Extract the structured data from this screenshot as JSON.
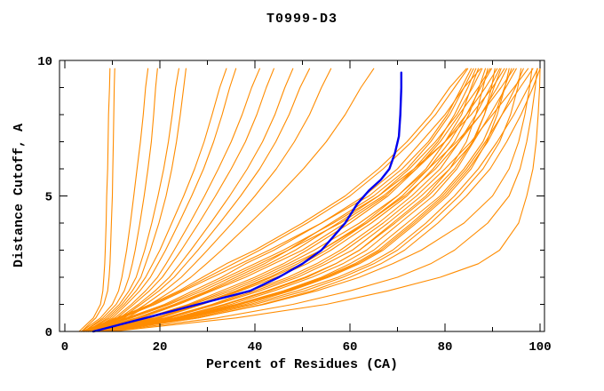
{
  "title": "T0999-D3",
  "colors": {
    "model_orange": "#FF8C00",
    "highlight_blue": "#0000EE",
    "axis": "#000000",
    "background": "#FFFFFF"
  },
  "axes": {
    "x": {
      "label": "Percent of Residues (CA)",
      "major_ticks": [
        0,
        20,
        40,
        60,
        80,
        100
      ],
      "minor_ticks": [
        10,
        30,
        50,
        70,
        90
      ],
      "range_shown": [
        -1,
        101
      ]
    },
    "y": {
      "label": "Distance Cutoff, A",
      "major_ticks": [
        0,
        5,
        10
      ],
      "minor_ticks": [
        1,
        2,
        3,
        4,
        6,
        7,
        8,
        9
      ],
      "range_shown": [
        0,
        10
      ]
    }
  },
  "chart_data": {
    "type": "line",
    "title": "T0999-D3",
    "xlabel": "Percent of Residues (CA)",
    "ylabel": "Distance Cutoff, A",
    "xlim": [
      -1,
      101
    ],
    "ylim": [
      0,
      10
    ],
    "grid": false,
    "legend": "none",
    "cutoffs": [
      0,
      0.5,
      1,
      1.5,
      2,
      2.5,
      3,
      4,
      5,
      6,
      7,
      8,
      9,
      9.7
    ],
    "orange_series_percents": [
      [
        3,
        6,
        7.5,
        8,
        8.2,
        8.4,
        8.5,
        8.7,
        8.8,
        9,
        9.1,
        9.2,
        9.4,
        9.5
      ],
      [
        3.5,
        6.5,
        8.2,
        9,
        9.3,
        9.5,
        9.6,
        9.8,
        10,
        10.1,
        10.2,
        10.3,
        10.4,
        10.5
      ],
      [
        3.5,
        7.5,
        10,
        11.3,
        12,
        12.5,
        13,
        13.8,
        14.5,
        15.2,
        15.9,
        16.5,
        17,
        17.5
      ],
      [
        4,
        8,
        10.8,
        12.5,
        13.5,
        14.2,
        14.8,
        15.8,
        16.7,
        17.5,
        18.2,
        18.7,
        19.1,
        19.5
      ],
      [
        4,
        8.5,
        11.5,
        13.5,
        15,
        15.9,
        16.8,
        18.3,
        19.6,
        20.8,
        21.8,
        22.6,
        23.3,
        24
      ],
      [
        4.5,
        9,
        12,
        14.2,
        16,
        17,
        18,
        19.8,
        21.3,
        22.5,
        23.5,
        24.3,
        25,
        25.5
      ],
      [
        4.5,
        9.5,
        12.5,
        15,
        17,
        18.5,
        20,
        22.5,
        25,
        27.3,
        29.3,
        31,
        32.6,
        34
      ],
      [
        5,
        10,
        13,
        15.8,
        18,
        19.6,
        21.2,
        24,
        26.7,
        29.2,
        31.3,
        33.1,
        34.7,
        36
      ],
      [
        5,
        10.5,
        14,
        17,
        19.5,
        21.3,
        23,
        26.3,
        29.4,
        32.3,
        35,
        37.3,
        39.3,
        41
      ],
      [
        5,
        11,
        14.5,
        17.8,
        20.5,
        22.5,
        24.5,
        28.2,
        31.7,
        35,
        38,
        40.4,
        42.4,
        44
      ],
      [
        5.5,
        11.5,
        15.5,
        19,
        22,
        24.3,
        26.5,
        30.7,
        34.7,
        38.4,
        41.6,
        44.2,
        46.3,
        48
      ],
      [
        5.5,
        12,
        16,
        19.8,
        23,
        25.5,
        28,
        32.6,
        37,
        41,
        44.4,
        47.2,
        49.5,
        51.5
      ],
      [
        6,
        12.5,
        17,
        21,
        24.5,
        27.3,
        30,
        35.2,
        40,
        44.5,
        48.3,
        51.5,
        54,
        56
      ],
      [
        6,
        13,
        18,
        22.5,
        26.5,
        29.8,
        33,
        39,
        44.8,
        50.2,
        55,
        59,
        62.3,
        65
      ],
      [
        3.5,
        11,
        18,
        24,
        29,
        34,
        40,
        50,
        59,
        66,
        72,
        77,
        81,
        84.5
      ],
      [
        4,
        13,
        21,
        27,
        33,
        38,
        44,
        54,
        63,
        70,
        75,
        80,
        84,
        87.5
      ],
      [
        4.5,
        15,
        23,
        30,
        36,
        42,
        47,
        56,
        65,
        72,
        77,
        81,
        84,
        86
      ],
      [
        5,
        17,
        26,
        33,
        40,
        46,
        51,
        60,
        68,
        74,
        79,
        83,
        87,
        89.5
      ],
      [
        5.5,
        19,
        28,
        36,
        43,
        49,
        54,
        63,
        70,
        76,
        80,
        83.5,
        85.5,
        87
      ],
      [
        6,
        21,
        31,
        39,
        47,
        53,
        58,
        66,
        73,
        79,
        83,
        86.5,
        89.5,
        91.5
      ],
      [
        6.5,
        23,
        34,
        43,
        51,
        57,
        62,
        69,
        76,
        81,
        84.5,
        86.5,
        88,
        89
      ],
      [
        7,
        24,
        36,
        46,
        54,
        60,
        65,
        72,
        79,
        84,
        88,
        90.5,
        92.5,
        94
      ],
      [
        4,
        12,
        19,
        25,
        31,
        37,
        43,
        54,
        64,
        71,
        76.5,
        80.5,
        83.5,
        85.5
      ],
      [
        4.5,
        14,
        22,
        29,
        35,
        41,
        47,
        58,
        67,
        74,
        80,
        84.5,
        88.5,
        91
      ],
      [
        5,
        16,
        24,
        31,
        38,
        44,
        50,
        59,
        67.5,
        73.5,
        78.5,
        82,
        84.8,
        86.5
      ],
      [
        5.5,
        18,
        27,
        35,
        42,
        48,
        54,
        63.5,
        71.5,
        78,
        83,
        87.5,
        91,
        93
      ],
      [
        6,
        20,
        29,
        37,
        44.5,
        51,
        56,
        64.5,
        72,
        77.5,
        82,
        85,
        87.2,
        88.5
      ],
      [
        6.5,
        22,
        32,
        41,
        49,
        55,
        60.5,
        68,
        75,
        81,
        86,
        89.5,
        92.8,
        95
      ],
      [
        7,
        23.5,
        35,
        44,
        52,
        58.5,
        63.5,
        70.5,
        77.5,
        82.5,
        86,
        88.3,
        89.8,
        90.5
      ],
      [
        7.5,
        25,
        37,
        47,
        55,
        61.5,
        66.5,
        73.5,
        80,
        85,
        89,
        92,
        94.8,
        96.5
      ],
      [
        3.5,
        11.5,
        18.5,
        24.5,
        30,
        35.5,
        41,
        51,
        60,
        67,
        73,
        78,
        82,
        84.8
      ],
      [
        4,
        13.5,
        21.5,
        28,
        34,
        40,
        46,
        56.5,
        66,
        73.5,
        80,
        85.5,
        90,
        92.5
      ],
      [
        4.5,
        15.5,
        23.5,
        30.5,
        37,
        43,
        48.5,
        57.5,
        66,
        72.5,
        78,
        82.5,
        85.8,
        87.8
      ],
      [
        5,
        17.5,
        26.5,
        34,
        41,
        47,
        52.5,
        62,
        70,
        76.5,
        82.5,
        87.5,
        91.8,
        94.5
      ],
      [
        5.5,
        19.5,
        28.5,
        36.5,
        43.5,
        50,
        55,
        63.5,
        71,
        76.5,
        81,
        84.5,
        87.5,
        89.8
      ],
      [
        6,
        21.5,
        31.5,
        40,
        48,
        54,
        59,
        67,
        74,
        80,
        85.5,
        90,
        94.5,
        97.5
      ],
      [
        6.5,
        23,
        33.5,
        42.5,
        50.5,
        57,
        62,
        69.5,
        76.5,
        82,
        85.8,
        88.3,
        90.3,
        91.8
      ],
      [
        7,
        24.5,
        36.5,
        46.5,
        54.5,
        61,
        66,
        73,
        79.5,
        84.5,
        88.5,
        92,
        95.8,
        98.5
      ],
      [
        7.5,
        25.5,
        38,
        47.5,
        55.5,
        62,
        67,
        74,
        80.5,
        85.5,
        88.8,
        91,
        92.6,
        93.5
      ],
      [
        8,
        26,
        39,
        49,
        57.5,
        64,
        69,
        76,
        82,
        87,
        91,
        94.5,
        97.5,
        99.5
      ],
      [
        8.5,
        27,
        40,
        50.5,
        58.5,
        65,
        70,
        77,
        83,
        88,
        91.5,
        93.8,
        95.3,
        96
      ],
      [
        9,
        28,
        41.5,
        52,
        60,
        66.5,
        71.5,
        78.5,
        84.5,
        89.5,
        93,
        96,
        98.5,
        100
      ],
      [
        8,
        28,
        42,
        53,
        62,
        69,
        75,
        84,
        90,
        93.5,
        95.5,
        96.8,
        97.8,
        98.3
      ],
      [
        9,
        32,
        48,
        60,
        70,
        77,
        82,
        89,
        93.5,
        95.8,
        97.2,
        98.2,
        99,
        99.4
      ],
      [
        10,
        36,
        55,
        68,
        79,
        87,
        91.5,
        95.5,
        97.2,
        98.5,
        99.2,
        99.6,
        99.9,
        100
      ]
    ],
    "blue_series_points": [
      [
        6,
        0
      ],
      [
        11.5,
        0.25
      ],
      [
        17,
        0.5
      ],
      [
        28,
        1
      ],
      [
        39,
        1.5
      ],
      [
        45,
        2
      ],
      [
        50,
        2.5
      ],
      [
        54,
        3
      ],
      [
        56.5,
        3.5
      ],
      [
        59,
        4
      ],
      [
        61.5,
        4.7
      ],
      [
        64,
        5.2
      ],
      [
        66.5,
        5.6
      ],
      [
        68.3,
        6
      ],
      [
        69.5,
        6.6
      ],
      [
        70.3,
        7.2
      ],
      [
        70.6,
        8
      ],
      [
        70.8,
        9
      ],
      [
        70.8,
        9.55
      ]
    ]
  }
}
